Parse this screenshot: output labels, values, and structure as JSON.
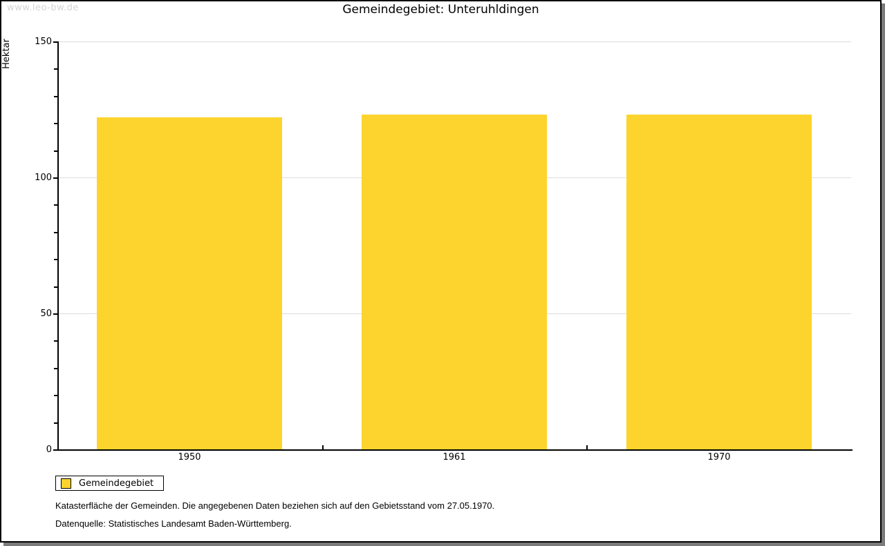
{
  "watermark": "www.leo-bw.de",
  "title": "Gemeindegebiet: Unteruhldingen",
  "chart_data": {
    "type": "bar",
    "title": "Gemeindegebiet: Unteruhldingen",
    "categories": [
      "1950",
      "1961",
      "1970"
    ],
    "values": [
      122,
      123,
      123
    ],
    "xlabel": "",
    "ylabel": "Hektar",
    "ylim": [
      0,
      150
    ],
    "ytick_major": [
      0,
      50,
      100,
      150
    ],
    "ytick_minor_step": 10,
    "grid": true,
    "legend": [
      "Gemeindegebiet"
    ],
    "legend_position": "bottom-left",
    "bar_color": "#fcd42d",
    "grid_color": "#dcdcdc",
    "axis_color": "#000000"
  },
  "footer": {
    "line1": "Katasterfläche der Gemeinden. Die angegebenen Daten beziehen sich auf den Gebietsstand vom 27.05.1970.",
    "line2": "Datenquelle: Statistisches Landesamt Baden-Württemberg."
  },
  "colors": {
    "bar": "#fcd42d",
    "grid": "#dcdcdc",
    "watermark": "#d4d4d4",
    "frame_shadow": "#7b7b7b"
  }
}
